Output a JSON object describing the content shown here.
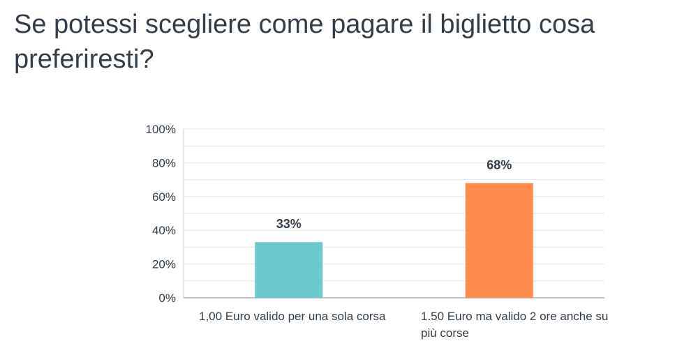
{
  "title": "Se potessi scegliere come pagare il biglietto cosa preferiresti?",
  "chart_data": {
    "type": "bar",
    "categories": [
      "1,00 Euro valido per una sola corsa",
      "1.50 Euro ma valido 2 ore anche su più corse"
    ],
    "values": [
      33,
      68
    ],
    "data_labels": [
      "33%",
      "68%"
    ],
    "colors": [
      "#6bc8cd",
      "#ff8b4f"
    ],
    "yticks": [
      "0%",
      "20%",
      "40%",
      "60%",
      "80%",
      "100%"
    ],
    "ylim": [
      0,
      100
    ],
    "grid": true,
    "legend": "none"
  }
}
